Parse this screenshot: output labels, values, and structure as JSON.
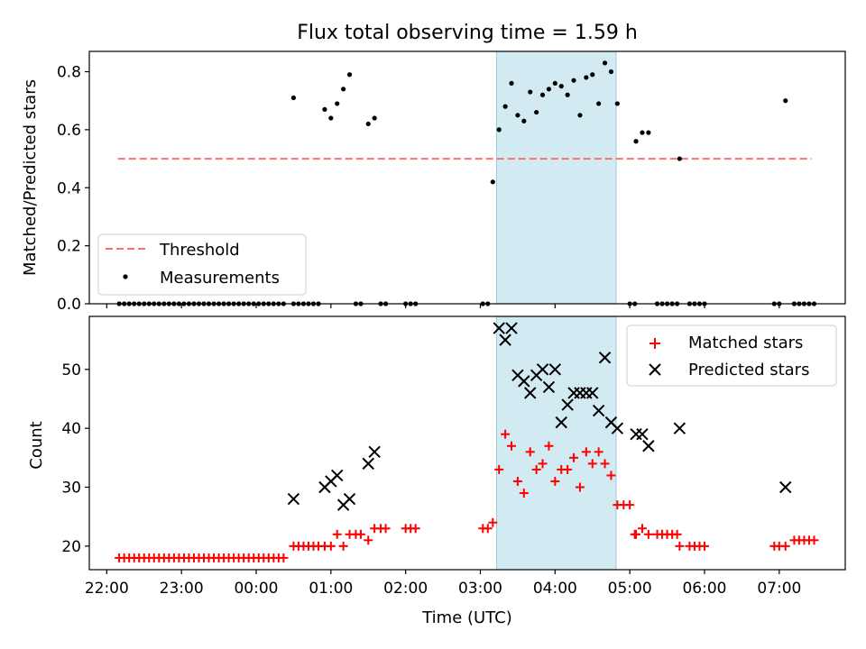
{
  "title": "Flux total observing time = 1.59 h",
  "chart_data": [
    {
      "type": "scatter",
      "ylabel": "Matched/Predicted stars",
      "xlabel": "",
      "xlim": [
        "21:46",
        "07:53"
      ],
      "ylim": [
        0,
        0.87
      ],
      "yticks": [
        "0.0",
        "0.2",
        "0.4",
        "0.6",
        "0.8"
      ],
      "x_is_time": true,
      "shaded_interval": [
        "03:13",
        "04:49"
      ],
      "shade_color": "#add8e6",
      "legend_position": "lower-left",
      "series": [
        {
          "name": "Threshold",
          "style": "dashed-line",
          "color": "#ff7070",
          "x": [
            "22:09",
            "07:26"
          ],
          "y": [
            0.5,
            0.5
          ]
        },
        {
          "name": "Measurements",
          "style": "dot",
          "color": "#000000",
          "x": [
            "22:10",
            "22:14",
            "22:18",
            "22:22",
            "22:26",
            "22:30",
            "22:34",
            "22:38",
            "22:42",
            "22:46",
            "22:50",
            "22:54",
            "22:58",
            "23:02",
            "23:06",
            "23:10",
            "23:14",
            "23:18",
            "23:22",
            "23:26",
            "23:30",
            "23:34",
            "23:38",
            "23:42",
            "23:46",
            "23:50",
            "23:54",
            "23:58",
            "00:02",
            "00:06",
            "00:10",
            "00:14",
            "00:18",
            "00:22",
            "00:30",
            "00:34",
            "00:38",
            "00:42",
            "00:46",
            "00:50",
            "01:20",
            "01:24",
            "01:40",
            "01:44",
            "02:00",
            "02:04",
            "02:08",
            "03:02",
            "03:06",
            "05:00",
            "05:04",
            "05:22",
            "05:26",
            "05:30",
            "05:34",
            "05:38",
            "05:48",
            "05:52",
            "05:56",
            "06:00",
            "06:56",
            "07:00",
            "07:12",
            "07:16",
            "07:20",
            "07:24",
            "07:28",
            "00:30",
            "00:55",
            "01:00",
            "01:05",
            "01:10",
            "01:15",
            "01:30",
            "01:35",
            "03:10",
            "03:15",
            "03:20",
            "03:25",
            "03:30",
            "03:35",
            "03:40",
            "03:45",
            "03:50",
            "03:55",
            "04:00",
            "04:05",
            "04:10",
            "04:15",
            "04:20",
            "04:25",
            "04:30",
            "04:35",
            "04:40",
            "04:45",
            "04:50",
            "05:05",
            "05:10",
            "05:15",
            "05:40",
            "07:05"
          ],
          "y": [
            0,
            0,
            0,
            0,
            0,
            0,
            0,
            0,
            0,
            0,
            0,
            0,
            0,
            0,
            0,
            0,
            0,
            0,
            0,
            0,
            0,
            0,
            0,
            0,
            0,
            0,
            0,
            0,
            0,
            0,
            0,
            0,
            0,
            0,
            0,
            0,
            0,
            0,
            0,
            0,
            0,
            0,
            0,
            0,
            0,
            0,
            0,
            0,
            0,
            0,
            0,
            0,
            0,
            0,
            0,
            0,
            0,
            0,
            0,
            0,
            0,
            0,
            0,
            0,
            0,
            0,
            0,
            0.71,
            0.67,
            0.64,
            0.69,
            0.74,
            0.79,
            0.62,
            0.64,
            0.42,
            0.6,
            0.68,
            0.76,
            0.65,
            0.63,
            0.73,
            0.66,
            0.72,
            0.74,
            0.76,
            0.75,
            0.72,
            0.77,
            0.65,
            0.78,
            0.79,
            0.69,
            0.83,
            0.8,
            0.69,
            0.56,
            0.59,
            0.59,
            0.5,
            0.7
          ]
        }
      ]
    },
    {
      "type": "scatter",
      "xlabel": "Time (UTC)",
      "ylabel": "Count",
      "xlim": [
        "21:46",
        "07:53"
      ],
      "ylim": [
        16,
        59
      ],
      "yticks": [
        "20",
        "30",
        "40",
        "50"
      ],
      "xticks": [
        "22:00",
        "23:00",
        "00:00",
        "01:00",
        "02:00",
        "03:00",
        "04:00",
        "05:00",
        "06:00",
        "07:00"
      ],
      "x_is_time": true,
      "shaded_interval": [
        "03:13",
        "04:49"
      ],
      "shade_color": "#add8e6",
      "legend_position": "upper-right",
      "series": [
        {
          "name": "Matched stars",
          "style": "plus",
          "color": "#ff0000",
          "x": [
            "22:10",
            "22:14",
            "22:18",
            "22:22",
            "22:26",
            "22:30",
            "22:34",
            "22:38",
            "22:42",
            "22:46",
            "22:50",
            "22:54",
            "22:58",
            "23:02",
            "23:06",
            "23:10",
            "23:14",
            "23:18",
            "23:22",
            "23:26",
            "23:30",
            "23:34",
            "23:38",
            "23:42",
            "23:46",
            "23:50",
            "23:54",
            "23:58",
            "00:02",
            "00:06",
            "00:10",
            "00:14",
            "00:18",
            "00:22",
            "00:30",
            "00:34",
            "00:38",
            "00:42",
            "00:46",
            "00:50",
            "00:55",
            "01:00",
            "01:05",
            "01:10",
            "01:15",
            "01:20",
            "01:24",
            "01:30",
            "01:35",
            "01:40",
            "01:44",
            "02:00",
            "02:04",
            "02:08",
            "03:02",
            "03:06",
            "03:10",
            "03:15",
            "03:20",
            "03:25",
            "03:30",
            "03:35",
            "03:40",
            "03:45",
            "03:50",
            "03:55",
            "04:00",
            "04:05",
            "04:10",
            "04:15",
            "04:20",
            "04:25",
            "04:30",
            "04:35",
            "04:40",
            "04:45",
            "04:50",
            "04:55",
            "05:00",
            "05:04",
            "05:05",
            "05:10",
            "05:15",
            "05:22",
            "05:26",
            "05:30",
            "05:34",
            "05:38",
            "05:40",
            "05:48",
            "05:52",
            "05:56",
            "06:00",
            "06:56",
            "07:00",
            "07:05",
            "07:12",
            "07:16",
            "07:20",
            "07:24",
            "07:28"
          ],
          "y": [
            18,
            18,
            18,
            18,
            18,
            18,
            18,
            18,
            18,
            18,
            18,
            18,
            18,
            18,
            18,
            18,
            18,
            18,
            18,
            18,
            18,
            18,
            18,
            18,
            18,
            18,
            18,
            18,
            18,
            18,
            18,
            18,
            18,
            18,
            20,
            20,
            20,
            20,
            20,
            20,
            20,
            20,
            22,
            20,
            22,
            22,
            22,
            21,
            23,
            23,
            23,
            23,
            23,
            23,
            23,
            23,
            24,
            33,
            39,
            37,
            31,
            29,
            36,
            33,
            34,
            37,
            31,
            33,
            33,
            35,
            30,
            36,
            34,
            36,
            34,
            32,
            27,
            27,
            27,
            22,
            22,
            23,
            22,
            22,
            22,
            22,
            22,
            22,
            20,
            20,
            20,
            20,
            20,
            20,
            20,
            20,
            21,
            21,
            21,
            21,
            21
          ]
        },
        {
          "name": "Predicted stars",
          "style": "x",
          "color": "#000000",
          "x": [
            "00:30",
            "00:55",
            "01:00",
            "01:05",
            "01:10",
            "01:15",
            "01:30",
            "01:35",
            "03:15",
            "03:20",
            "03:25",
            "03:30",
            "03:35",
            "03:40",
            "03:45",
            "03:50",
            "03:55",
            "04:00",
            "04:05",
            "04:10",
            "04:15",
            "04:20",
            "04:25",
            "04:30",
            "04:35",
            "04:40",
            "04:45",
            "04:50",
            "05:05",
            "05:10",
            "05:15",
            "05:40",
            "07:05"
          ],
          "y": [
            28,
            30,
            31,
            32,
            27,
            28,
            34,
            36,
            57,
            55,
            57,
            49,
            48,
            46,
            49,
            50,
            47,
            50,
            41,
            44,
            46,
            46,
            46,
            46,
            43,
            52,
            41,
            40,
            39,
            39,
            37,
            40,
            30
          ]
        }
      ]
    }
  ]
}
